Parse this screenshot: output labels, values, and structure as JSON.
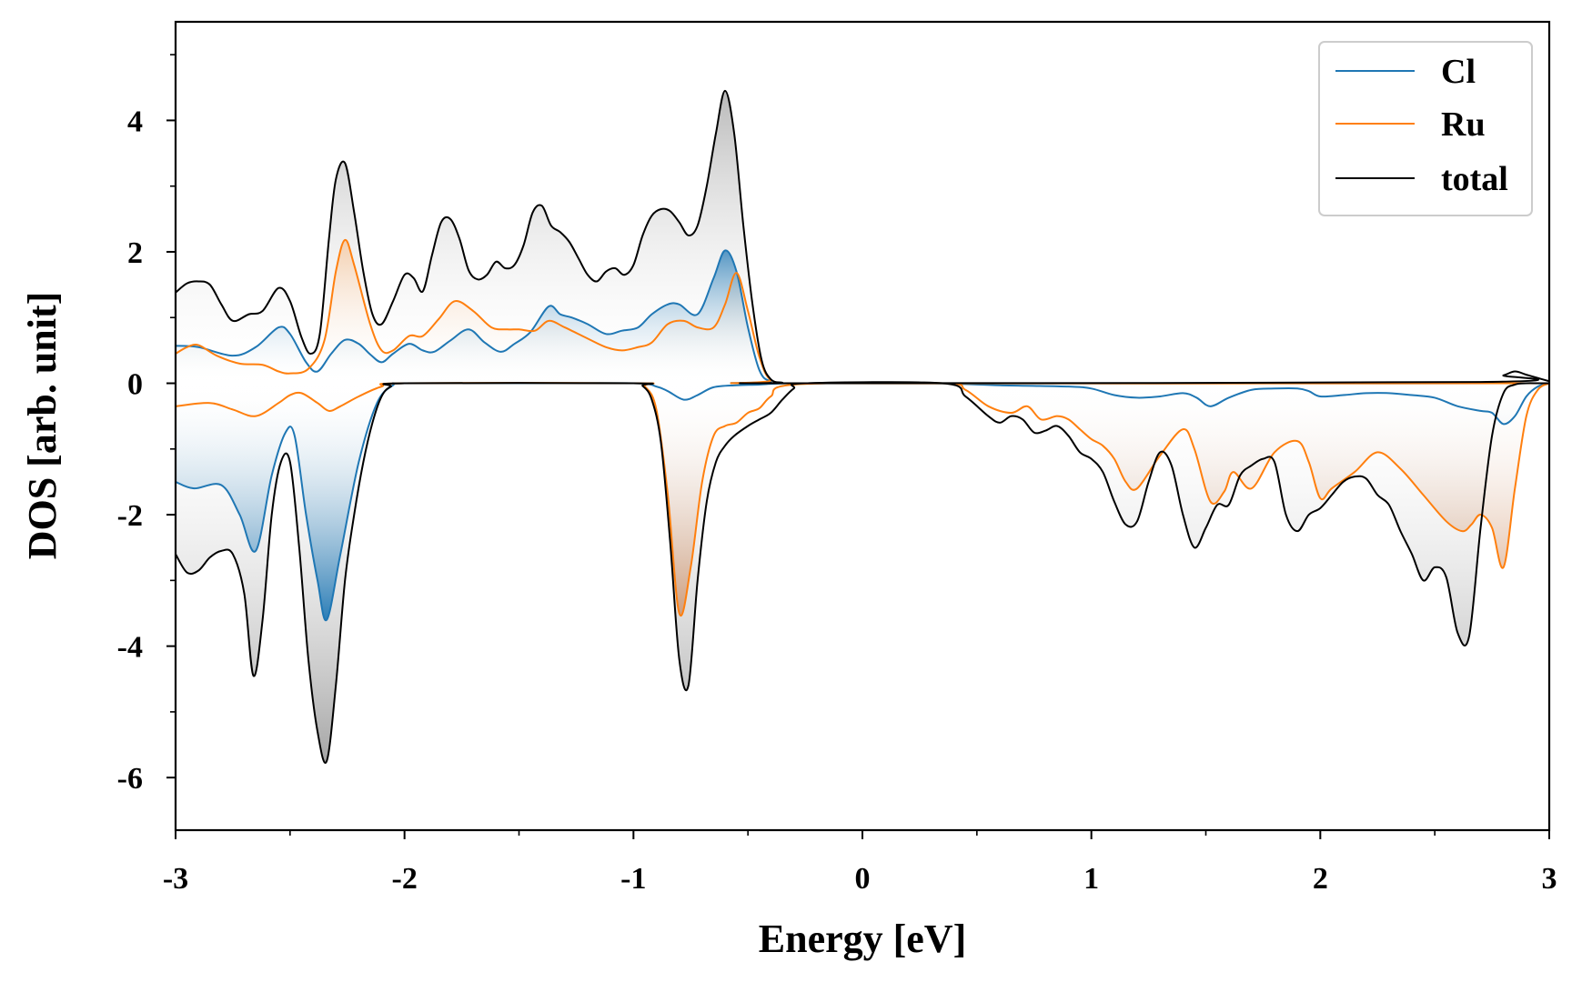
{
  "chart_data": {
    "type": "line",
    "title": "",
    "xlabel": "Energy [eV]",
    "ylabel": "DOS [arb. unit]",
    "xlim": [
      -3,
      3
    ],
    "ylim": [
      -6.8,
      5.5
    ],
    "xticks": [
      -3,
      -2,
      -1,
      0,
      1,
      2,
      3
    ],
    "xtick_labels": [
      "-3",
      "-2",
      "-1",
      "0",
      "1",
      "2",
      "3"
    ],
    "yticks": [
      -6,
      -4,
      -2,
      0,
      2,
      4
    ],
    "ytick_labels": [
      "-6",
      "-4",
      "-2",
      "0",
      "2",
      "4"
    ],
    "grid": false,
    "legend_position": "top-right",
    "series": [
      {
        "name": "Cl",
        "color": "#1f77b4",
        "up": {
          "x": [
            -3,
            -2.9,
            -2.75,
            -2.65,
            -2.55,
            -2.5,
            -2.43,
            -2.38,
            -2.32,
            -2.26,
            -2.2,
            -2.15,
            -2.1,
            -2.05,
            -1.98,
            -1.92,
            -1.87,
            -1.8,
            -1.72,
            -1.65,
            -1.58,
            -1.52,
            -1.45,
            -1.37,
            -1.32,
            -1.27,
            -1.2,
            -1.12,
            -1.05,
            -0.98,
            -0.92,
            -0.85,
            -0.8,
            -0.72,
            -0.65,
            -0.6,
            -0.55,
            -0.5,
            -0.45,
            -0.4,
            -0.3,
            3
          ],
          "y": [
            0.57,
            0.55,
            0.42,
            0.55,
            0.85,
            0.75,
            0.32,
            0.18,
            0.45,
            0.66,
            0.6,
            0.44,
            0.32,
            0.45,
            0.6,
            0.5,
            0.48,
            0.65,
            0.82,
            0.62,
            0.48,
            0.6,
            0.78,
            1.17,
            1.05,
            1.0,
            0.9,
            0.75,
            0.8,
            0.85,
            1.05,
            1.2,
            1.2,
            1.05,
            1.6,
            2.02,
            1.7,
            0.85,
            0.2,
            0.03,
            0.0,
            0.0
          ]
        },
        "down": {
          "x": [
            -3,
            -2.92,
            -2.8,
            -2.72,
            -2.65,
            -2.58,
            -2.52,
            -2.48,
            -2.43,
            -2.38,
            -2.34,
            -2.28,
            -2.2,
            -2.12,
            -2.05,
            -2.0,
            -1.5,
            -1.0,
            -0.9,
            -0.85,
            -0.78,
            -0.72,
            -0.65,
            -0.55,
            -0.45,
            -0.3,
            0.3,
            0.6,
            0.9,
            1.0,
            1.1,
            1.2,
            1.3,
            1.4,
            1.46,
            1.52,
            1.6,
            1.7,
            1.8,
            1.9,
            1.95,
            2.0,
            2.1,
            2.2,
            2.3,
            2.4,
            2.5,
            2.6,
            2.7,
            2.75,
            2.8,
            2.85,
            2.9,
            2.95,
            3.0
          ],
          "y": [
            -1.5,
            -1.6,
            -1.55,
            -2.0,
            -2.55,
            -1.4,
            -0.75,
            -0.8,
            -2.0,
            -3.0,
            -3.6,
            -2.6,
            -1.2,
            -0.3,
            -0.03,
            0.0,
            0.0,
            0.0,
            -0.05,
            -0.12,
            -0.25,
            -0.18,
            -0.06,
            -0.03,
            -0.02,
            0.0,
            0.0,
            -0.03,
            -0.05,
            -0.08,
            -0.18,
            -0.22,
            -0.2,
            -0.15,
            -0.22,
            -0.35,
            -0.22,
            -0.1,
            -0.08,
            -0.08,
            -0.12,
            -0.2,
            -0.18,
            -0.15,
            -0.15,
            -0.18,
            -0.22,
            -0.35,
            -0.42,
            -0.45,
            -0.62,
            -0.5,
            -0.2,
            -0.05,
            0.0
          ]
        }
      },
      {
        "name": "Ru",
        "color": "#ff7f0e",
        "up": {
          "x": [
            -3,
            -2.95,
            -2.9,
            -2.82,
            -2.72,
            -2.62,
            -2.55,
            -2.5,
            -2.42,
            -2.35,
            -2.3,
            -2.26,
            -2.22,
            -2.15,
            -2.1,
            -2.05,
            -1.98,
            -1.92,
            -1.85,
            -1.78,
            -1.7,
            -1.62,
            -1.55,
            -1.5,
            -1.43,
            -1.37,
            -1.3,
            -1.2,
            -1.12,
            -1.05,
            -0.98,
            -0.92,
            -0.85,
            -0.78,
            -0.72,
            -0.65,
            -0.6,
            -0.55,
            -0.5,
            -0.45,
            -0.4,
            -0.3,
            3
          ],
          "y": [
            0.45,
            0.55,
            0.58,
            0.42,
            0.3,
            0.28,
            0.18,
            0.15,
            0.22,
            0.65,
            1.7,
            2.18,
            1.8,
            0.9,
            0.5,
            0.5,
            0.72,
            0.72,
            0.98,
            1.25,
            1.1,
            0.85,
            0.82,
            0.82,
            0.8,
            0.95,
            0.85,
            0.68,
            0.55,
            0.5,
            0.55,
            0.62,
            0.9,
            0.95,
            0.85,
            0.85,
            1.2,
            1.68,
            1.1,
            0.4,
            0.05,
            0.0,
            0.0
          ]
        },
        "down": {
          "x": [
            -3,
            -2.85,
            -2.75,
            -2.65,
            -2.55,
            -2.5,
            -2.45,
            -2.38,
            -2.33,
            -2.28,
            -2.2,
            -2.1,
            -2.0,
            -1.0,
            -0.95,
            -0.9,
            -0.85,
            -0.8,
            -0.75,
            -0.7,
            -0.65,
            -0.6,
            -0.55,
            -0.5,
            -0.45,
            -0.4,
            -0.3,
            0.35,
            0.45,
            0.55,
            0.65,
            0.72,
            0.78,
            0.85,
            0.9,
            0.95,
            1.0,
            1.05,
            1.1,
            1.15,
            1.2,
            1.3,
            1.4,
            1.45,
            1.52,
            1.58,
            1.62,
            1.7,
            1.8,
            1.9,
            1.95,
            2.0,
            2.05,
            2.15,
            2.25,
            2.35,
            2.45,
            2.55,
            2.62,
            2.66,
            2.7,
            2.75,
            2.8,
            2.85,
            2.9,
            2.95,
            3.0
          ],
          "y": [
            -0.35,
            -0.3,
            -0.4,
            -0.5,
            -0.3,
            -0.18,
            -0.15,
            -0.3,
            -0.42,
            -0.35,
            -0.2,
            -0.05,
            0.0,
            0.0,
            -0.05,
            -0.4,
            -1.7,
            -3.5,
            -2.8,
            -1.5,
            -0.8,
            -0.65,
            -0.6,
            -0.45,
            -0.38,
            -0.2,
            -0.02,
            0.0,
            -0.1,
            -0.35,
            -0.45,
            -0.35,
            -0.55,
            -0.5,
            -0.55,
            -0.7,
            -0.85,
            -0.95,
            -1.15,
            -1.5,
            -1.6,
            -1.1,
            -0.7,
            -1.0,
            -1.8,
            -1.65,
            -1.35,
            -1.6,
            -1.05,
            -0.88,
            -1.2,
            -1.75,
            -1.6,
            -1.35,
            -1.05,
            -1.3,
            -1.7,
            -2.1,
            -2.25,
            -2.15,
            -2.0,
            -2.2,
            -2.8,
            -1.6,
            -0.5,
            -0.1,
            0.0
          ]
        }
      },
      {
        "name": "total",
        "color": "#000000",
        "up": {
          "x": [
            -3,
            -2.95,
            -2.9,
            -2.85,
            -2.8,
            -2.75,
            -2.68,
            -2.62,
            -2.55,
            -2.5,
            -2.45,
            -2.41,
            -2.37,
            -2.33,
            -2.3,
            -2.26,
            -2.22,
            -2.18,
            -2.14,
            -2.1,
            -2.05,
            -2.0,
            -1.96,
            -1.92,
            -1.88,
            -1.84,
            -1.8,
            -1.76,
            -1.72,
            -1.68,
            -1.64,
            -1.6,
            -1.56,
            -1.52,
            -1.48,
            -1.44,
            -1.4,
            -1.36,
            -1.32,
            -1.28,
            -1.24,
            -1.2,
            -1.16,
            -1.12,
            -1.08,
            -1.04,
            -1.0,
            -0.96,
            -0.92,
            -0.88,
            -0.84,
            -0.8,
            -0.76,
            -0.72,
            -0.68,
            -0.64,
            -0.6,
            -0.56,
            -0.52,
            -0.48,
            -0.44,
            -0.4,
            -0.35,
            -0.3,
            2.7,
            2.8,
            2.85,
            2.9,
            2.95,
            3.0
          ],
          "y": [
            1.38,
            1.52,
            1.55,
            1.5,
            1.2,
            0.95,
            1.05,
            1.1,
            1.45,
            1.25,
            0.7,
            0.45,
            0.75,
            2.2,
            3.1,
            3.35,
            2.6,
            1.7,
            1.05,
            0.9,
            1.25,
            1.65,
            1.6,
            1.4,
            1.95,
            2.45,
            2.5,
            2.2,
            1.72,
            1.58,
            1.65,
            1.85,
            1.75,
            1.8,
            2.1,
            2.6,
            2.7,
            2.4,
            2.3,
            2.15,
            1.9,
            1.65,
            1.55,
            1.7,
            1.75,
            1.65,
            1.8,
            2.25,
            2.55,
            2.65,
            2.62,
            2.45,
            2.25,
            2.4,
            3.0,
            3.8,
            4.45,
            3.8,
            2.4,
            1.2,
            0.35,
            0.06,
            0.01,
            0.0,
            0.02,
            0.12,
            0.18,
            0.13,
            0.08,
            0.03
          ]
        },
        "down": {
          "x": [
            -3,
            -2.95,
            -2.9,
            -2.85,
            -2.8,
            -2.75,
            -2.7,
            -2.66,
            -2.62,
            -2.58,
            -2.54,
            -2.5,
            -2.46,
            -2.42,
            -2.38,
            -2.34,
            -2.3,
            -2.26,
            -2.22,
            -2.18,
            -2.14,
            -2.1,
            -2.06,
            -2.0,
            -1.0,
            -0.96,
            -0.92,
            -0.88,
            -0.84,
            -0.8,
            -0.76,
            -0.72,
            -0.68,
            -0.64,
            -0.6,
            -0.56,
            -0.5,
            -0.45,
            -0.4,
            -0.35,
            -0.3,
            -0.25,
            0.35,
            0.45,
            0.55,
            0.6,
            0.65,
            0.7,
            0.75,
            0.8,
            0.85,
            0.9,
            0.95,
            1.0,
            1.05,
            1.1,
            1.15,
            1.2,
            1.25,
            1.3,
            1.35,
            1.4,
            1.45,
            1.5,
            1.55,
            1.6,
            1.65,
            1.7,
            1.75,
            1.8,
            1.85,
            1.9,
            1.95,
            2.0,
            2.05,
            2.1,
            2.15,
            2.2,
            2.25,
            2.3,
            2.35,
            2.4,
            2.45,
            2.5,
            2.55,
            2.6,
            2.65,
            2.7,
            2.75,
            2.8,
            2.85,
            2.9,
            2.95,
            3.0
          ],
          "y": [
            -2.6,
            -2.88,
            -2.85,
            -2.65,
            -2.55,
            -2.6,
            -3.2,
            -4.45,
            -3.6,
            -2.0,
            -1.2,
            -1.2,
            -2.5,
            -4.2,
            -5.3,
            -5.75,
            -4.6,
            -3.0,
            -2.0,
            -1.2,
            -0.6,
            -0.2,
            -0.05,
            0.0,
            0.0,
            -0.04,
            -0.25,
            -0.9,
            -2.4,
            -4.2,
            -4.6,
            -3.0,
            -1.8,
            -1.2,
            -0.95,
            -0.8,
            -0.65,
            -0.55,
            -0.45,
            -0.25,
            -0.08,
            0.0,
            0.0,
            -0.2,
            -0.5,
            -0.6,
            -0.5,
            -0.55,
            -0.75,
            -0.72,
            -0.65,
            -0.8,
            -1.05,
            -1.15,
            -1.35,
            -1.8,
            -2.15,
            -2.1,
            -1.5,
            -1.05,
            -1.25,
            -2.0,
            -2.5,
            -2.2,
            -1.85,
            -1.85,
            -1.4,
            -1.25,
            -1.15,
            -1.2,
            -2.0,
            -2.25,
            -2.0,
            -1.9,
            -1.7,
            -1.5,
            -1.42,
            -1.45,
            -1.7,
            -1.85,
            -2.25,
            -2.6,
            -3.0,
            -2.8,
            -2.95,
            -3.8,
            -3.85,
            -2.2,
            -0.8,
            -0.15,
            -0.02,
            0.0,
            0.0,
            0.0
          ]
        }
      }
    ]
  }
}
